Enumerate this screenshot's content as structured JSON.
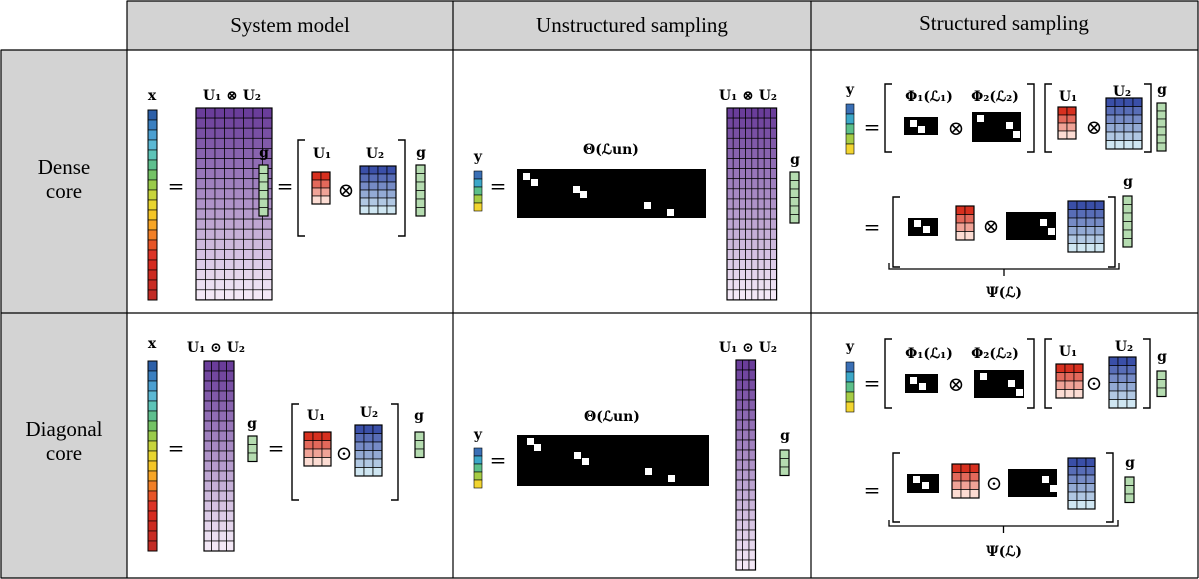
{
  "headers": [
    "System model",
    "Unstructured sampling",
    "Structured sampling"
  ],
  "rows": [
    "Dense core",
    "Diagonal core"
  ],
  "symbols": {
    "x": "x",
    "y": "y",
    "g": "g",
    "U1": "U₁",
    "U2": "U₂",
    "kron": "U₁ ⊗ U₂",
    "khatri": "U₁ ⊙ U₂",
    "theta": "Θ(ℒun)",
    "phi1": "Φ₁(ℒ₁)",
    "phi2": "Φ₂(ℒ₂)",
    "psi": "Ψ(ℒ)",
    "equals": "=",
    "otimes": "⊗",
    "odot": "⊙"
  },
  "colors": {
    "header_bg": "#d3d3d3",
    "rowlabel_bg": "#d3d3d3",
    "border": "#000000",
    "purple_top": "#6a3d9a",
    "purple_bottom": "#f1e6f5",
    "red_top": "#d7301f",
    "red_bottom": "#fde0dd",
    "blue_top": "#3a4fa8",
    "blue_bottom": "#c6e2f0",
    "green_core": "#b5dcb0",
    "sampling_bg": "#000000",
    "sample_dot": "#ffffff"
  }
}
